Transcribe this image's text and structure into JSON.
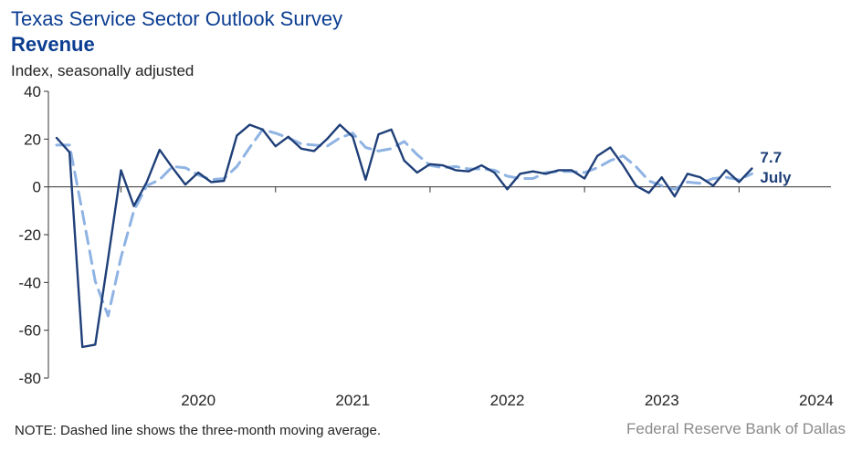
{
  "chart_data": {
    "type": "line",
    "title": "Texas Service Sector Outlook Survey",
    "subtitle": "Revenue",
    "ylabel": "Index, seasonally adjusted",
    "ylim": [
      -80,
      40
    ],
    "yticks": [
      40,
      20,
      0,
      -20,
      -40,
      -60,
      -80
    ],
    "x_start": "2019-08",
    "x_end": "2024-07",
    "xticks": [
      "2020",
      "2021",
      "2022",
      "2023",
      "2024"
    ],
    "series": [
      {
        "kind": "monthly",
        "color": "#1f3f78",
        "style": "solid",
        "values": [
          20.5,
          14.5,
          -67.0,
          -66.0,
          -30.0,
          7.0,
          -8.0,
          2.0,
          15.5,
          8.0,
          1.0,
          6.0,
          2.0,
          2.5,
          21.5,
          26.0,
          24.0,
          17.0,
          21.0,
          16.0,
          15.0,
          20.0,
          26.0,
          21.0,
          3.0,
          22.0,
          24.0,
          11.0,
          6.0,
          9.5,
          9.0,
          7.0,
          6.5,
          9.0,
          6.0,
          -1.0,
          5.5,
          6.5,
          5.5,
          7.0,
          7.0,
          3.5,
          13.0,
          16.5,
          9.0,
          0.5,
          -2.5,
          4.0,
          -4.0,
          5.5,
          4.0,
          0.5,
          7.0,
          2.0,
          7.7
        ]
      },
      {
        "kind": "three-month moving average",
        "color": "#8fb3e3",
        "style": "dashed",
        "values": [
          17.5,
          17.5,
          -10.5,
          -39.5,
          -54.0,
          -29.5,
          -10.0,
          0.5,
          3.0,
          8.5,
          8.0,
          5.0,
          3.0,
          3.5,
          8.5,
          16.5,
          24.0,
          22.5,
          20.5,
          18.0,
          17.5,
          17.0,
          20.5,
          22.5,
          16.5,
          15.0,
          16.0,
          19.0,
          13.5,
          9.0,
          8.0,
          8.5,
          7.5,
          7.5,
          7.0,
          4.5,
          3.5,
          3.5,
          6.0,
          6.5,
          6.5,
          6.0,
          8.0,
          11.0,
          13.0,
          8.5,
          2.5,
          0.5,
          -1.0,
          2.0,
          1.5,
          3.5,
          4.0,
          3.0,
          5.5
        ]
      }
    ],
    "annotation": {
      "value": "7.7",
      "month": "July"
    }
  },
  "note": "NOTE: Dashed line shows the three-month moving average.",
  "source": "Federal Reserve Bank of Dallas"
}
